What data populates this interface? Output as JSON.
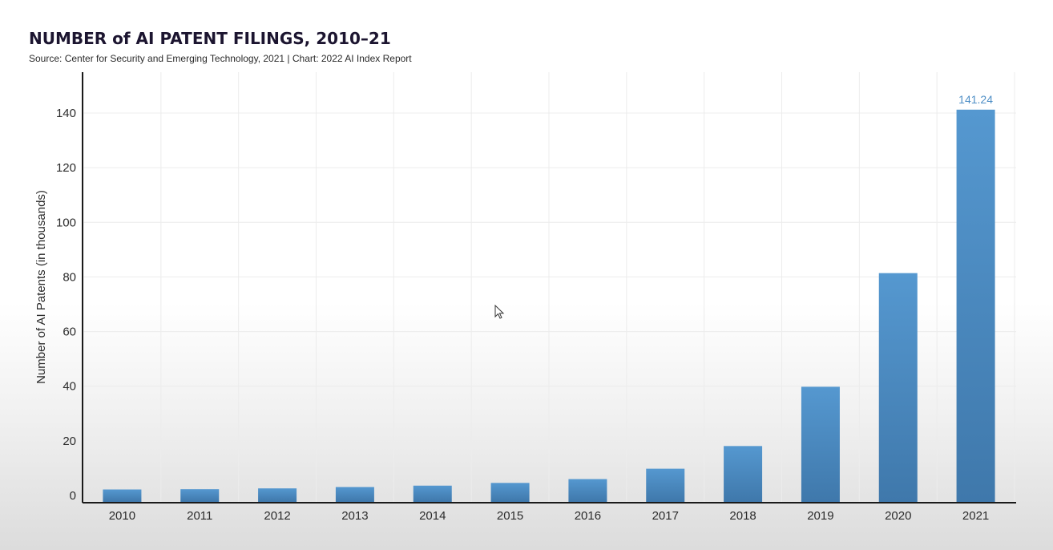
{
  "header": {
    "title": "NUMBER of AI PATENT FILINGS, 2010–21",
    "subtitle": "Source: Center for Security and Emerging Technology, 2021 | Chart: 2022 AI Index Report"
  },
  "chart_data": {
    "type": "bar",
    "title": "NUMBER of AI PATENT FILINGS, 2010–21",
    "subtitle": "Source: Center for Security and Emerging Technology, 2021 | Chart: 2022 AI Index Report",
    "xlabel": "",
    "ylabel": "Number of AI Patents (in thousands)",
    "categories": [
      "2010",
      "2011",
      "2012",
      "2013",
      "2014",
      "2015",
      "2016",
      "2017",
      "2018",
      "2019",
      "2020",
      "2021"
    ],
    "values": [
      2.2,
      2.3,
      2.6,
      3.1,
      3.6,
      4.6,
      6.0,
      9.8,
      18.1,
      39.8,
      81.4,
      141.24
    ],
    "ylim": [
      0,
      150
    ],
    "yticks": [
      0,
      20,
      40,
      60,
      80,
      100,
      120,
      140
    ],
    "data_labels": [
      {
        "index": 11,
        "text": "141.24"
      }
    ],
    "grid": true,
    "legend": "none",
    "colors": {
      "bar": "#4f8fc6",
      "bar_dark": "#3f76a8",
      "label": "#4f8fc6",
      "axis": "#1a1a1a",
      "grid": "#ececec",
      "text": "#2b2b2b"
    }
  }
}
